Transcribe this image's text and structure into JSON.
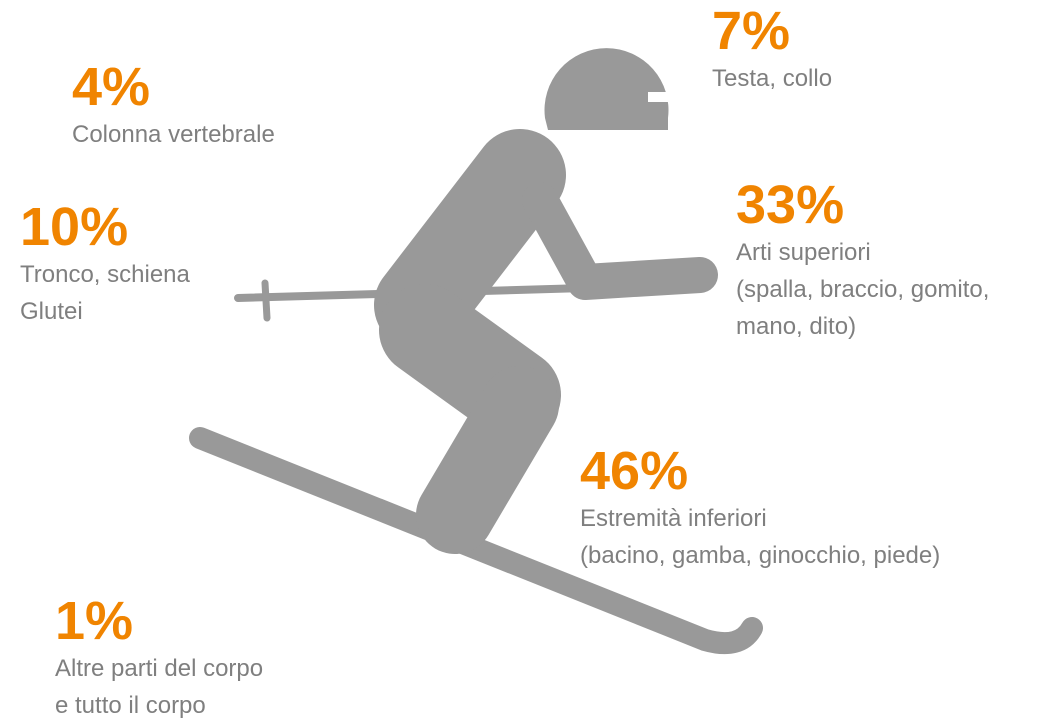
{
  "items": [
    {
      "percent": "7%",
      "lines": [
        "Testa, collo"
      ]
    },
    {
      "percent": "4%",
      "lines": [
        "Colonna vertebrale"
      ]
    },
    {
      "percent": "10%",
      "lines": [
        "Tronco, schiena",
        "Glutei"
      ]
    },
    {
      "percent": "33%",
      "lines": [
        "Arti superiori",
        "(spalla, braccio, gomito,",
        "mano, dito)"
      ]
    },
    {
      "percent": "46%",
      "lines": [
        "Estremità inferiori",
        "(bacino, gamba, ginocchio, piede)"
      ]
    },
    {
      "percent": "1%",
      "lines": [
        "Altre parti del corpo",
        "e tutto il corpo"
      ]
    }
  ]
}
